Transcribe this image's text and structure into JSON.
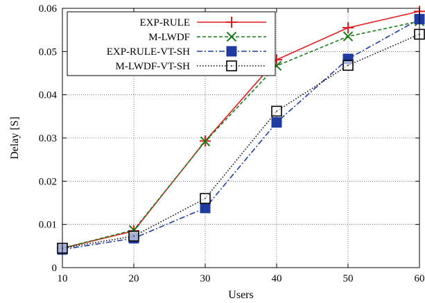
{
  "chart_data": {
    "type": "line",
    "title": "",
    "xlabel": "Users",
    "ylabel": "Delay [S]",
    "xlim": [
      10,
      60
    ],
    "ylim": [
      0,
      0.06
    ],
    "xticks": [
      10,
      20,
      30,
      40,
      50,
      60
    ],
    "yticks": [
      0,
      0.01,
      0.02,
      0.03,
      0.04,
      0.05,
      0.06
    ],
    "xtick_labels": [
      "10",
      "20",
      "30",
      "40",
      "50",
      "60"
    ],
    "ytick_labels": [
      "0",
      "0.01",
      "0.02",
      "0.03",
      "0.04",
      "0.05",
      "0.06"
    ],
    "grid": true,
    "legend_position": "top-left",
    "x": [
      10,
      20,
      30,
      40,
      50,
      60
    ],
    "series": [
      {
        "name": "EXP-RULE",
        "values": [
          0.0045,
          0.0085,
          0.0293,
          0.0481,
          0.0555,
          0.0593
        ],
        "color": "#e41a1c",
        "dash": "solid",
        "marker": "plus"
      },
      {
        "name": "M-LWDF",
        "values": [
          0.0045,
          0.0087,
          0.0292,
          0.0467,
          0.0535,
          0.057
        ],
        "color": "#1a7a1a",
        "dash": "dashed",
        "marker": "x"
      },
      {
        "name": "EXP-RULE-VT-SH",
        "values": [
          0.0042,
          0.0068,
          0.0138,
          0.0336,
          0.0483,
          0.0575
        ],
        "color": "#1f3aa0",
        "dash": "dashdot",
        "marker": "filled-square"
      },
      {
        "name": "M-LWDF-VT-SH",
        "values": [
          0.0045,
          0.0073,
          0.016,
          0.0362,
          0.0468,
          0.054
        ],
        "color": "#000000",
        "dash": "dotted",
        "marker": "open-square"
      }
    ]
  }
}
